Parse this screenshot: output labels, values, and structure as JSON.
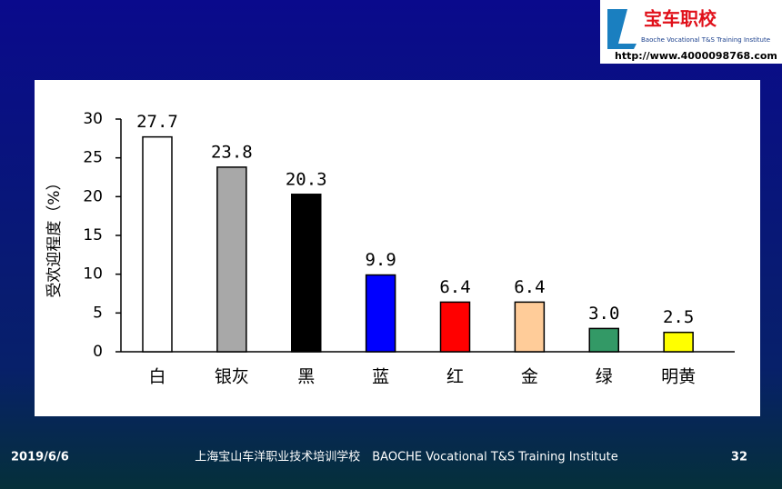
{
  "chart_data": {
    "type": "bar",
    "ylabel": "受欢迎程度（%）",
    "categories": [
      "白",
      "银灰",
      "黑",
      "蓝",
      "红",
      "金",
      "绿",
      "明黄"
    ],
    "values": [
      27.7,
      23.8,
      20.3,
      9.9,
      6.4,
      6.4,
      3.0,
      2.5
    ],
    "value_labels": [
      "27.7",
      "23.8",
      "20.3",
      "9.9",
      "6.4",
      "6.4",
      "3.0",
      "2.5"
    ],
    "colors": [
      "#ffffff",
      "#a8a8a8",
      "#000000",
      "#0000ff",
      "#ff0000",
      "#ffcc99",
      "#339966",
      "#ffff00"
    ],
    "ylim": [
      0,
      30
    ],
    "yticks": [
      0,
      5,
      10,
      15,
      20,
      25,
      30
    ],
    "grid": false
  },
  "logo": {
    "name": "宝车职校",
    "subtitle": "Baoche Vocational T&S Training Institute",
    "url": "http://www.4000098768.com"
  },
  "footer": {
    "date": "2019/6/6",
    "institute": "上海宝山车洋职业技术培训学校　BAOCHE Vocational T&S Training Institute",
    "page": "32"
  }
}
